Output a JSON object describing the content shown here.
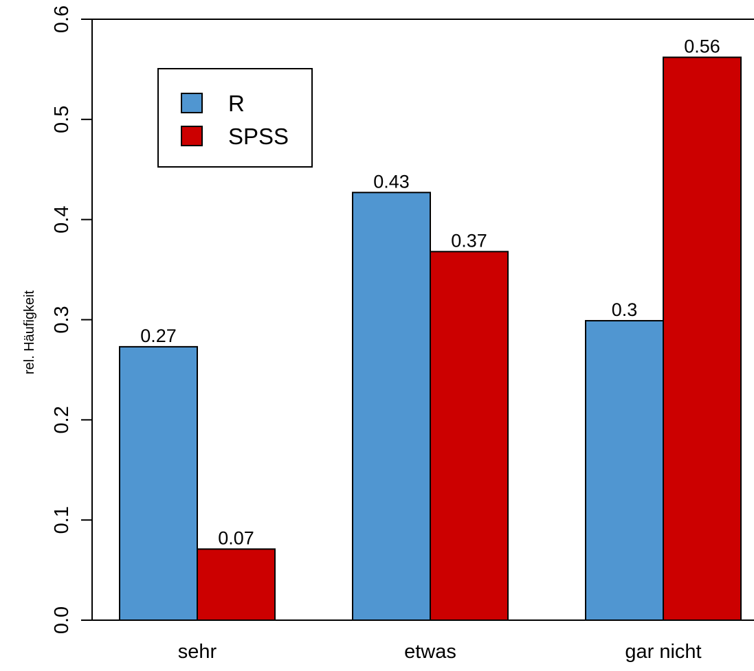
{
  "chart_data": {
    "type": "bar",
    "title": "",
    "xlabel": "",
    "ylabel": "rel. Häufigkeit",
    "ylim": [
      0,
      0.6
    ],
    "yticks": [
      "0.0",
      "0.1",
      "0.2",
      "0.3",
      "0.4",
      "0.5",
      "0.6"
    ],
    "categories": [
      "sehr",
      "etwas",
      "gar nicht"
    ],
    "series": [
      {
        "name": "R",
        "values": [
          0.273,
          0.427,
          0.299
        ],
        "labels": [
          "0.27",
          "0.43",
          "0.3"
        ],
        "color": "#5096D1"
      },
      {
        "name": "SPSS",
        "values": [
          0.071,
          0.368,
          0.562
        ],
        "labels": [
          "0.07",
          "0.37",
          "0.56"
        ],
        "color": "#CC0000"
      }
    ],
    "grid": false,
    "legend_position": "top-left"
  }
}
